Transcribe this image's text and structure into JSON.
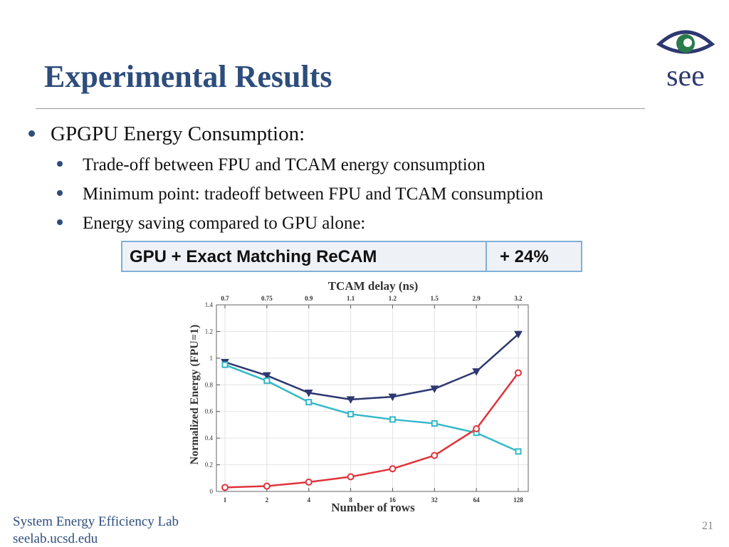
{
  "slide": {
    "title": "Experimental Results",
    "bullet_main": "GPGPU Energy Consumption:",
    "sub_bullets": [
      "Trade-off between FPU and TCAM energy consumption",
      "Minimum point: tradeoff between FPU and TCAM consumption",
      "Energy saving compared to GPU alone:"
    ],
    "table": {
      "label": "GPU + Exact Matching ReCAM",
      "value": "+ 24%"
    },
    "logo_text": "see",
    "footer_line1": "System Energy Efficiency Lab",
    "footer_line2": "seelab.ucsd.edu",
    "page_number": "21"
  },
  "colors": {
    "title": "#2d4d7c",
    "navy_series": "#2e3870",
    "cyan_series": "#33b8c8",
    "red_series": "#e0343c",
    "logo_green": "#2a7a4a"
  },
  "chart_data": {
    "type": "line",
    "top_axis_label": "TCAM delay (ns)",
    "top_ticks": [
      "0.7",
      "0.75",
      "0.9",
      "1.1",
      "1.2",
      "1.5",
      "2.9",
      "3.2"
    ],
    "xlabel": "Number of rows",
    "ylabel": "Normalized Energy (FPU=1)",
    "categories": [
      "1",
      "2",
      "4",
      "8",
      "16",
      "32",
      "64",
      "128"
    ],
    "y_ticks": [
      "0",
      "0.2",
      "0.4",
      "0.6",
      "0.8",
      "1",
      "1.2",
      "1.4"
    ],
    "ylim": [
      0,
      1.4
    ],
    "grid": true,
    "series": [
      {
        "values": [
          0.97,
          0.87,
          0.74,
          0.69,
          0.71,
          0.77,
          0.9,
          1.18
        ],
        "marker": "triangle-down",
        "color": "#2e3870"
      },
      {
        "values": [
          0.95,
          0.83,
          0.67,
          0.58,
          0.54,
          0.51,
          0.44,
          0.3
        ],
        "marker": "square",
        "color": "#33b8c8"
      },
      {
        "values": [
          0.03,
          0.04,
          0.07,
          0.11,
          0.17,
          0.27,
          0.47,
          0.89
        ],
        "marker": "circle",
        "color": "#e0343c"
      }
    ]
  }
}
